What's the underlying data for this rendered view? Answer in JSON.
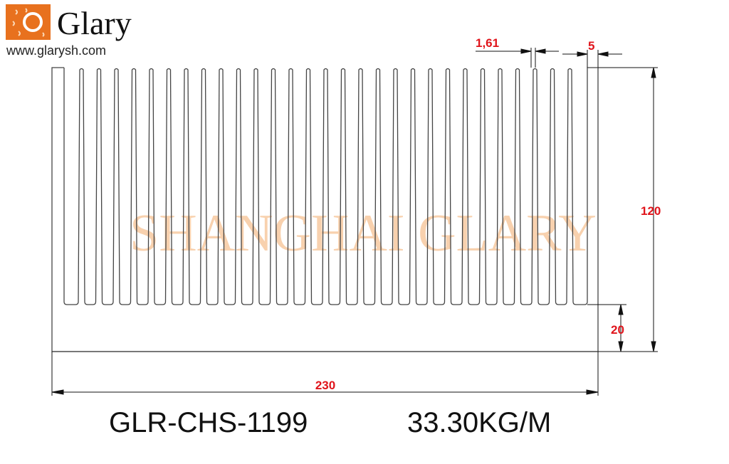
{
  "logo": {
    "brand": "Glary",
    "url": "www.glarysh.com",
    "color": "#e8711e"
  },
  "watermark": "SHANGHAI GLARY",
  "dimensions": {
    "fin_thickness": "1,61",
    "wall_thickness": "5",
    "height": "120",
    "base_thickness": "20",
    "width": "230"
  },
  "part_number": "GLR-CHS-1199",
  "weight": "33.30KG/M",
  "colors": {
    "dimension_text": "#e0141b",
    "outline": "#444444",
    "watermark": "#f7c9a0"
  }
}
